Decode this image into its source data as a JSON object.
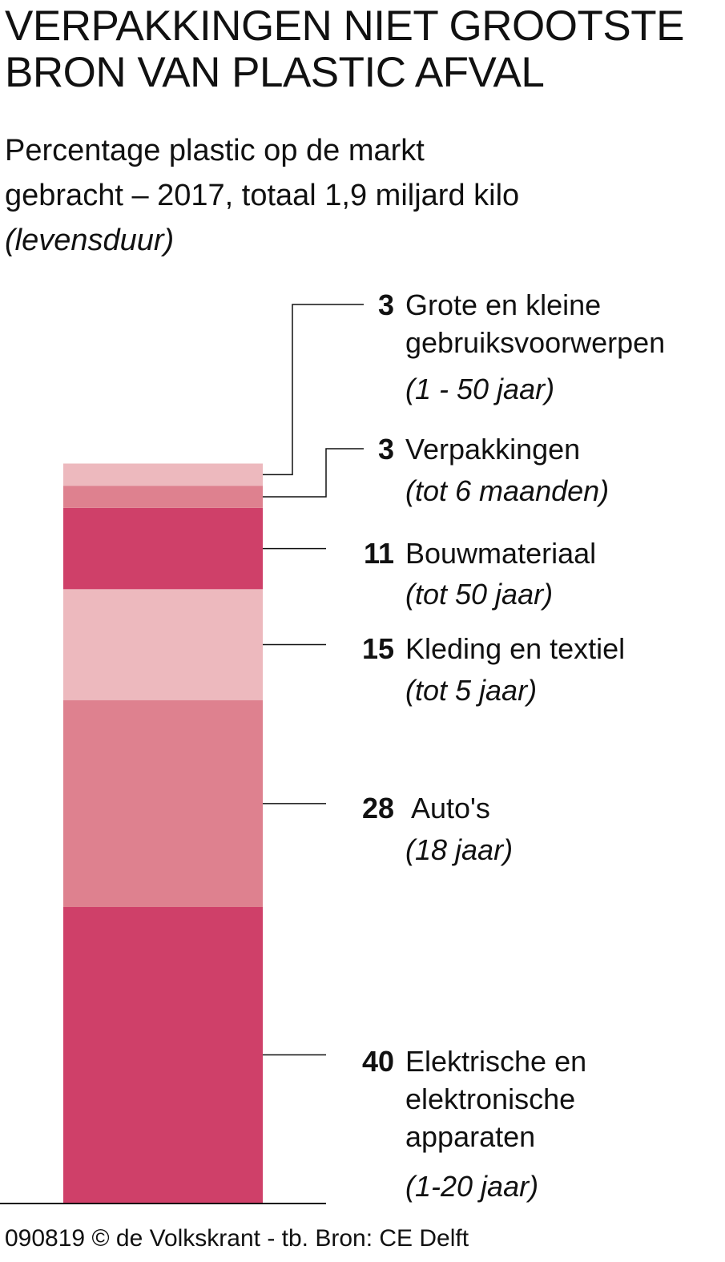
{
  "colors": {
    "dark": "#cf4069",
    "medium": "#de818f",
    "light": "#edb9be",
    "line": "#111111"
  },
  "chart_data": {
    "type": "bar",
    "stacked": true,
    "title": "VERPAKKINGEN NIET GROOTSTE\nBRON VAN PLASTIC AFVAL",
    "subtitle": [
      "Percentage plastic op de markt",
      "gebracht – 2017, totaal 1,9 miljard kilo"
    ],
    "subtitle_note": "(levensduur)",
    "segments": [
      {
        "value": 40,
        "label_lines": [
          "Elektrische en",
          "elektronische",
          "apparaten"
        ],
        "lifespan": "(1-20 jaar)",
        "shade": "dark"
      },
      {
        "value": 28,
        "label_lines": [
          "Auto's"
        ],
        "lifespan": "(18 jaar)",
        "shade": "medium"
      },
      {
        "value": 15,
        "label_lines": [
          "Kleding en textiel"
        ],
        "lifespan": "(tot 5 jaar)",
        "shade": "light"
      },
      {
        "value": 11,
        "label_lines": [
          "Bouwmateriaal"
        ],
        "lifespan": "(tot 50 jaar)",
        "shade": "dark"
      },
      {
        "value": 3,
        "label_lines": [
          "Verpakkingen"
        ],
        "lifespan": "(tot 6 maanden)",
        "shade": "medium"
      },
      {
        "value": 3,
        "label_lines": [
          "Grote en kleine",
          "gebruiksvoorwerpen"
        ],
        "lifespan": "(1 - 50 jaar)",
        "shade": "light"
      }
    ],
    "footer": "090819 © de Volkskrant - tb. Bron: CE Delft"
  }
}
